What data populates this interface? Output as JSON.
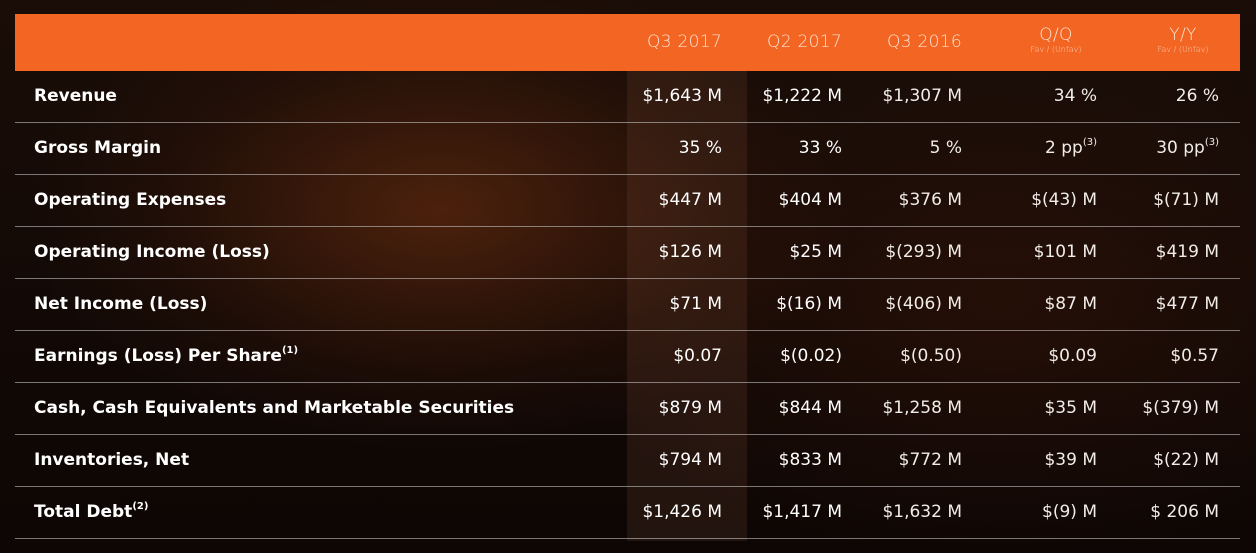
{
  "columns": [
    {
      "label": "Q3 2017",
      "sub": ""
    },
    {
      "label": "Q2 2017",
      "sub": ""
    },
    {
      "label": "Q3 2016",
      "sub": ""
    },
    {
      "label": "Q/Q",
      "sub": "Fav / (Unfav)"
    },
    {
      "label": "Y/Y",
      "sub": "Fav / (Unfav)"
    }
  ],
  "rows": [
    {
      "label": "Revenue",
      "label_sup": "",
      "values": [
        "$1,643 M",
        "$1,222 M",
        "$1,307 M",
        "34 %",
        "26 %"
      ],
      "value_sups": [
        "",
        "",
        "",
        "",
        ""
      ]
    },
    {
      "label": "Gross Margin",
      "label_sup": "",
      "values": [
        "35 %",
        "33 %",
        "5 %",
        "2 pp",
        "30 pp"
      ],
      "value_sups": [
        "",
        "",
        "",
        "(3)",
        "(3)"
      ]
    },
    {
      "label": "Operating Expenses",
      "label_sup": "",
      "values": [
        "$447 M",
        "$404 M",
        "$376 M",
        "$(43) M",
        "$(71) M"
      ],
      "value_sups": [
        "",
        "",
        "",
        "",
        ""
      ]
    },
    {
      "label": "Operating Income (Loss)",
      "label_sup": "",
      "values": [
        "$126 M",
        "$25 M",
        "$(293) M",
        "$101 M",
        "$419 M"
      ],
      "value_sups": [
        "",
        "",
        "",
        "",
        ""
      ]
    },
    {
      "label": "Net Income (Loss)",
      "label_sup": "",
      "values": [
        "$71 M",
        "$(16) M",
        "$(406) M",
        "$87 M",
        "$477 M"
      ],
      "value_sups": [
        "",
        "",
        "",
        "",
        ""
      ]
    },
    {
      "label": "Earnings (Loss) Per Share",
      "label_sup": "(1)",
      "values": [
        "$0.07",
        "$(0.02)",
        "$(0.50)",
        "$0.09",
        "$0.57"
      ],
      "value_sups": [
        "",
        "",
        "",
        "",
        ""
      ]
    },
    {
      "label": "Cash, Cash Equivalents and Marketable Securities",
      "label_sup": "",
      "values": [
        "$879 M",
        "$844 M",
        "$1,258 M",
        "$35 M",
        "$(379) M"
      ],
      "value_sups": [
        "",
        "",
        "",
        "",
        ""
      ]
    },
    {
      "label": "Inventories, Net",
      "label_sup": "",
      "values": [
        "$794 M",
        "$833 M",
        "$772 M",
        "$39 M",
        "$(22) M"
      ],
      "value_sups": [
        "",
        "",
        "",
        "",
        ""
      ]
    },
    {
      "label": "Total Debt",
      "label_sup": "(2)",
      "values": [
        "$1,426 M",
        "$1,417 M",
        "$1,632 M",
        "$(9) M",
        "$ 206 M"
      ],
      "value_sups": [
        "",
        "",
        "",
        "",
        ""
      ]
    }
  ],
  "colors": {
    "header_bg": "#f26522",
    "row_divider": "#d2d2d2",
    "text": "#ffffff"
  }
}
